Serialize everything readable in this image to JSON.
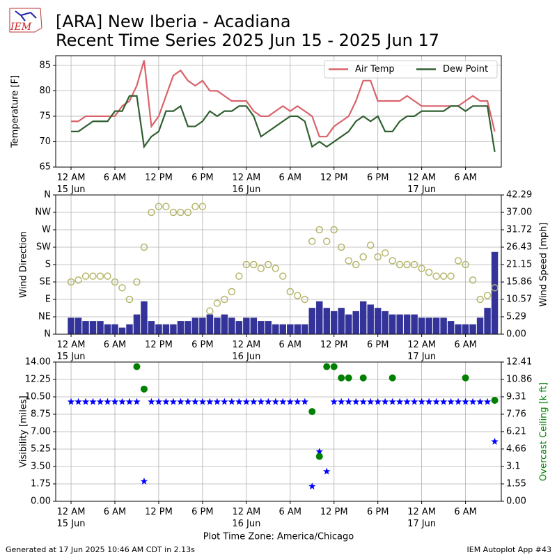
{
  "logo": "IEM",
  "footer_left": "Generated at 17 Jun 2025 10:46 AM CDT in 2.13s",
  "footer_right": "IEM Autoplot App #43",
  "chart_data": [
    {
      "type": "line",
      "title": "[ARA] New Iberia - Acadiana",
      "subtitle": "Recent Time Series 2025 Jun 15 - 2025 Jun 17",
      "ylabel": "Temperature [F]",
      "grid": true,
      "legend": "upper right",
      "x": [
        0,
        1,
        2,
        3,
        4,
        5,
        6,
        7,
        8,
        9,
        10,
        11,
        12,
        13,
        14,
        15,
        16,
        17,
        18,
        19,
        20,
        21,
        22,
        23,
        24,
        25,
        26,
        27,
        28,
        29,
        30,
        31,
        32,
        33,
        34,
        35,
        36,
        37,
        38,
        39,
        40,
        41,
        42,
        43,
        44,
        45,
        46,
        47,
        48,
        49,
        50,
        51,
        52,
        53,
        54,
        55,
        56,
        57,
        58
      ],
      "xlim": [
        -2.1,
        58.9
      ],
      "xticks": [
        {
          "value": 0,
          "label": "12 AM\n15 Jun"
        },
        {
          "value": 6,
          "label": "6 AM"
        },
        {
          "value": 12,
          "label": "12 PM"
        },
        {
          "value": 18,
          "label": "6 PM"
        },
        {
          "value": 24,
          "label": "12 AM\n16 Jun"
        },
        {
          "value": 30,
          "label": "6 AM"
        },
        {
          "value": 36,
          "label": "12 PM"
        },
        {
          "value": 42,
          "label": "6 PM"
        },
        {
          "value": 48,
          "label": "12 AM\n17 Jun"
        },
        {
          "value": 54,
          "label": "6 AM"
        }
      ],
      "ylim": [
        65,
        86.9
      ],
      "yticks": [
        65,
        70,
        75,
        80,
        85
      ],
      "series": [
        {
          "name": "Air Temp",
          "color": "#d9626a",
          "values": [
            74,
            74,
            75,
            75,
            75,
            75,
            75,
            77,
            78,
            81,
            86,
            73,
            75,
            79,
            83,
            84,
            82,
            81,
            82,
            80,
            80,
            79,
            78,
            78,
            78,
            76,
            75,
            75,
            76,
            77,
            76,
            77,
            76,
            75,
            71,
            71,
            73,
            74,
            75,
            78,
            82,
            82,
            78,
            78,
            78,
            78,
            79,
            78,
            77,
            77,
            77,
            77,
            77,
            77,
            78,
            79,
            78,
            78,
            72
          ]
        },
        {
          "name": "Dew Point",
          "color": "#2f5f2f",
          "values": [
            72,
            72,
            73,
            74,
            74,
            74,
            76,
            76,
            79,
            79,
            69,
            71,
            72,
            76,
            76,
            77,
            73,
            73,
            74,
            76,
            75,
            76,
            76,
            77,
            77,
            75,
            71,
            72,
            73,
            74,
            75,
            75,
            74,
            69,
            70,
            69,
            70,
            71,
            72,
            74,
            75,
            74,
            75,
            72,
            72,
            74,
            75,
            75,
            76,
            76,
            76,
            76,
            77,
            77,
            76,
            77,
            77,
            77,
            68
          ]
        }
      ]
    },
    {
      "type": "combo",
      "ylabel": "Wind Direction",
      "y2label": "Wind Speed [mph]",
      "grid": true,
      "x": [
        0,
        1,
        2,
        3,
        4,
        5,
        6,
        7,
        8,
        9,
        10,
        11,
        12,
        13,
        14,
        15,
        16,
        17,
        18,
        19,
        20,
        21,
        22,
        23,
        24,
        25,
        26,
        27,
        28,
        29,
        30,
        31,
        32,
        33,
        34,
        35,
        36,
        37,
        38,
        39,
        40,
        41,
        42,
        43,
        44,
        45,
        46,
        47,
        48,
        49,
        50,
        51,
        52,
        53,
        54,
        55,
        56,
        57,
        58
      ],
      "xlim": [
        -2.1,
        58.9
      ],
      "xticks": [
        {
          "value": 0,
          "label": "12 AM\n15 Jun"
        },
        {
          "value": 6,
          "label": "6 AM"
        },
        {
          "value": 12,
          "label": "12 PM"
        },
        {
          "value": 18,
          "label": "6 PM"
        },
        {
          "value": 24,
          "label": "12 AM\n16 Jun"
        },
        {
          "value": 30,
          "label": "6 AM"
        },
        {
          "value": 36,
          "label": "12 PM"
        },
        {
          "value": 42,
          "label": "6 PM"
        },
        {
          "value": 48,
          "label": "12 AM\n17 Jun"
        },
        {
          "value": 54,
          "label": "6 AM"
        }
      ],
      "ylim": [
        0,
        360
      ],
      "yticks": [
        {
          "value": 0,
          "label": "N"
        },
        {
          "value": 45,
          "label": "NE"
        },
        {
          "value": 90,
          "label": "E"
        },
        {
          "value": 135,
          "label": "SE"
        },
        {
          "value": 180,
          "label": "S"
        },
        {
          "value": 225,
          "label": "SW"
        },
        {
          "value": 270,
          "label": "W"
        },
        {
          "value": 315,
          "label": "NW"
        },
        {
          "value": 360,
          "label": "N"
        }
      ],
      "y2lim": [
        0,
        42.29
      ],
      "y2ticks": [
        {
          "value": 0,
          "label": "0.00"
        },
        5.29,
        10.57,
        15.86,
        21.15,
        26.43,
        31.72,
        {
          "value": 37,
          "label": "37.00"
        },
        42.29
      ],
      "series": [
        {
          "type": "bar",
          "axis": "y2",
          "color": "#333399",
          "values": [
            5,
            5,
            4,
            4,
            4,
            3,
            3,
            2,
            3,
            6,
            10,
            4,
            3,
            3,
            3,
            4,
            4,
            5,
            5,
            6,
            5,
            6,
            5,
            4,
            5,
            5,
            4,
            4,
            3,
            3,
            3,
            3,
            3,
            8,
            10,
            8,
            7,
            8,
            6,
            7,
            10,
            9,
            8,
            7,
            6,
            6,
            6,
            6,
            5,
            5,
            5,
            5,
            4,
            3,
            3,
            3,
            5,
            8,
            25
          ]
        },
        {
          "type": "scatter",
          "marker": "open-circle",
          "color": "#b5b56a",
          "values": [
            135,
            140,
            150,
            150,
            150,
            150,
            135,
            120,
            90,
            135,
            225,
            315,
            330,
            330,
            315,
            315,
            315,
            330,
            330,
            60,
            80,
            90,
            110,
            150,
            180,
            180,
            170,
            180,
            170,
            150,
            110,
            100,
            90,
            240,
            270,
            240,
            270,
            225,
            190,
            180,
            200,
            230,
            200,
            210,
            190,
            180,
            180,
            180,
            170,
            160,
            150,
            150,
            150,
            190,
            180,
            140,
            90,
            100,
            120
          ]
        }
      ]
    },
    {
      "type": "combo",
      "ylabel": "Visibility [miles]",
      "y2label": "Overcast Ceiling [k ft]",
      "y2label_color": "#008000",
      "xlabel": "Plot Time Zone: America/Chicago",
      "grid": true,
      "x": [
        0,
        1,
        2,
        3,
        4,
        5,
        6,
        7,
        8,
        9,
        10,
        11,
        12,
        13,
        14,
        15,
        16,
        17,
        18,
        19,
        20,
        21,
        22,
        23,
        24,
        25,
        26,
        27,
        28,
        29,
        30,
        31,
        32,
        33,
        34,
        35,
        36,
        37,
        38,
        39,
        40,
        41,
        42,
        43,
        44,
        45,
        46,
        47,
        48,
        49,
        50,
        51,
        52,
        53,
        54,
        55,
        56,
        57,
        58
      ],
      "xlim": [
        -2.1,
        58.9
      ],
      "xticks": [
        {
          "value": 0,
          "label": "12 AM\n15 Jun"
        },
        {
          "value": 6,
          "label": "6 AM"
        },
        {
          "value": 12,
          "label": "12 PM"
        },
        {
          "value": 18,
          "label": "6 PM"
        },
        {
          "value": 24,
          "label": "12 AM\n16 Jun"
        },
        {
          "value": 30,
          "label": "6 AM"
        },
        {
          "value": 36,
          "label": "12 PM"
        },
        {
          "value": 42,
          "label": "6 PM"
        },
        {
          "value": 48,
          "label": "12 AM\n17 Jun"
        },
        {
          "value": 54,
          "label": "6 AM"
        }
      ],
      "ylim": [
        0,
        14
      ],
      "yticks": [
        {
          "value": 0,
          "label": "0.00"
        },
        1.75,
        {
          "value": 3.5,
          "label": "3.50"
        },
        5.25,
        {
          "value": 7,
          "label": "7.00"
        },
        8.75,
        {
          "value": 10.5,
          "label": "10.50"
        },
        12.25,
        {
          "value": 14,
          "label": "14.00"
        }
      ],
      "y2lim": [
        0,
        12.41
      ],
      "y2ticks": [
        {
          "value": 0,
          "label": "0.00"
        },
        1.55,
        3.1,
        4.66,
        6.21,
        7.76,
        9.31,
        10.86,
        12.41
      ],
      "series": [
        {
          "type": "scatter",
          "marker": "star",
          "color": "#0000ff",
          "values": [
            10,
            10,
            10,
            10,
            10,
            10,
            10,
            10,
            10,
            10,
            2,
            10,
            10,
            10,
            10,
            10,
            10,
            10,
            10,
            10,
            10,
            10,
            10,
            10,
            10,
            10,
            10,
            10,
            10,
            10,
            10,
            10,
            10,
            1.5,
            5,
            3,
            10,
            10,
            10,
            10,
            10,
            10,
            10,
            10,
            10,
            10,
            10,
            10,
            10,
            10,
            10,
            10,
            10,
            10,
            10,
            10,
            10,
            10,
            6
          ]
        },
        {
          "type": "scatter",
          "marker": "circle",
          "axis": "y2",
          "color": "#008000",
          "values": [
            null,
            null,
            null,
            null,
            null,
            null,
            null,
            null,
            null,
            12,
            10,
            null,
            null,
            null,
            null,
            null,
            null,
            null,
            null,
            null,
            null,
            null,
            null,
            null,
            null,
            null,
            null,
            null,
            null,
            null,
            null,
            null,
            null,
            8,
            4,
            12,
            12,
            11,
            11,
            null,
            11,
            null,
            null,
            null,
            11,
            null,
            null,
            null,
            null,
            null,
            null,
            null,
            null,
            null,
            11,
            null,
            null,
            null,
            9
          ]
        }
      ]
    }
  ]
}
